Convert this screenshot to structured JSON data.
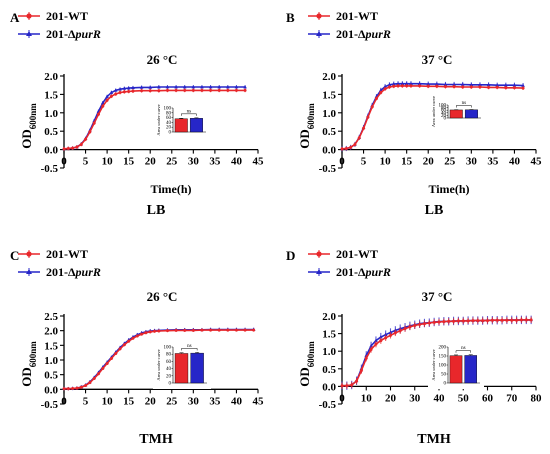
{
  "legend": {
    "wt_label": "201-WT",
    "mut_prefix": "201-Δ",
    "mut_gene": "purR",
    "wt_color": "#e8272b",
    "mut_color": "#2626c8"
  },
  "chart_data": [
    {
      "panel": "A",
      "type": "line",
      "title": "26 °C",
      "medium": "LB",
      "xlabel": "Time(h)",
      "ylabel_main": "OD",
      "ylabel_sub": "600nm",
      "xlim": [
        0,
        45
      ],
      "ylim": [
        -0.5,
        2.0
      ],
      "xticks": [
        0,
        5,
        10,
        15,
        20,
        25,
        30,
        35,
        40,
        45
      ],
      "yticks": [
        -0.5,
        0.0,
        0.5,
        1.0,
        1.5,
        2.0
      ],
      "tick_format": 1,
      "series": [
        {
          "name": "201-WT",
          "x": [
            0,
            1,
            2,
            3,
            4,
            5,
            6,
            7,
            8,
            9,
            10,
            11,
            12,
            13,
            14,
            15,
            16,
            18,
            20,
            22,
            24,
            26,
            28,
            30,
            32,
            34,
            36,
            38,
            40,
            42
          ],
          "y": [
            0.02,
            0.03,
            0.04,
            0.07,
            0.14,
            0.28,
            0.48,
            0.72,
            0.96,
            1.18,
            1.34,
            1.45,
            1.51,
            1.55,
            1.57,
            1.58,
            1.59,
            1.6,
            1.6,
            1.6,
            1.61,
            1.61,
            1.61,
            1.61,
            1.61,
            1.61,
            1.61,
            1.61,
            1.61,
            1.61
          ],
          "err": 0.05
        },
        {
          "name": "201-ΔpurR",
          "x": [
            0,
            1,
            2,
            3,
            4,
            5,
            6,
            7,
            8,
            9,
            10,
            11,
            12,
            13,
            14,
            15,
            16,
            18,
            20,
            22,
            24,
            26,
            28,
            30,
            32,
            34,
            36,
            38,
            40,
            42
          ],
          "y": [
            0.02,
            0.03,
            0.04,
            0.07,
            0.15,
            0.3,
            0.52,
            0.78,
            1.04,
            1.27,
            1.44,
            1.55,
            1.61,
            1.64,
            1.66,
            1.67,
            1.68,
            1.69,
            1.69,
            1.7,
            1.7,
            1.7,
            1.7,
            1.7,
            1.7,
            1.7,
            1.7,
            1.7,
            1.7,
            1.7
          ],
          "err": 0.05
        }
      ],
      "inset": {
        "yticks": [
          0,
          20,
          40,
          60,
          80,
          100
        ],
        "ymax": 100,
        "ylabel": "Area under curve",
        "values": [
          55,
          57
        ],
        "errs": [
          2,
          2
        ],
        "sig": "ns"
      }
    },
    {
      "panel": "B",
      "type": "line",
      "title": "37 °C",
      "medium": "LB",
      "xlabel": "Time(h)",
      "ylabel_main": "OD",
      "ylabel_sub": "600nm",
      "xlim": [
        0,
        45
      ],
      "ylim": [
        -0.5,
        2.0
      ],
      "xticks": [
        0,
        5,
        10,
        15,
        20,
        25,
        30,
        35,
        40,
        45
      ],
      "yticks": [
        -0.5,
        0.0,
        0.5,
        1.0,
        1.5,
        2.0
      ],
      "tick_format": 1,
      "series": [
        {
          "name": "201-WT",
          "x": [
            0,
            1,
            2,
            3,
            4,
            5,
            6,
            7,
            8,
            9,
            10,
            11,
            12,
            13,
            14,
            15,
            16,
            18,
            20,
            22,
            24,
            26,
            28,
            30,
            32,
            34,
            36,
            38,
            40,
            42
          ],
          "y": [
            0.02,
            0.03,
            0.06,
            0.14,
            0.32,
            0.58,
            0.88,
            1.16,
            1.39,
            1.55,
            1.65,
            1.7,
            1.72,
            1.73,
            1.73,
            1.73,
            1.73,
            1.73,
            1.72,
            1.72,
            1.71,
            1.71,
            1.7,
            1.7,
            1.7,
            1.69,
            1.69,
            1.68,
            1.68,
            1.67
          ],
          "err": 0.05
        },
        {
          "name": "201-ΔpurR",
          "x": [
            0,
            1,
            2,
            3,
            4,
            5,
            6,
            7,
            8,
            9,
            10,
            11,
            12,
            13,
            14,
            15,
            16,
            18,
            20,
            22,
            24,
            26,
            28,
            30,
            32,
            34,
            36,
            38,
            40,
            42
          ],
          "y": [
            0.02,
            0.03,
            0.06,
            0.14,
            0.33,
            0.6,
            0.91,
            1.2,
            1.44,
            1.61,
            1.71,
            1.76,
            1.78,
            1.79,
            1.79,
            1.79,
            1.79,
            1.79,
            1.78,
            1.78,
            1.77,
            1.77,
            1.77,
            1.76,
            1.76,
            1.76,
            1.75,
            1.75,
            1.75,
            1.74
          ],
          "err": 0.07
        }
      ],
      "inset": {
        "yticks": [
          0,
          20,
          40,
          60,
          80,
          100
        ],
        "ymax": 100,
        "ylabel": "Area under curve",
        "values": [
          62,
          63
        ],
        "errs": [
          2,
          2
        ],
        "sig": "ns"
      }
    },
    {
      "panel": "C",
      "type": "line",
      "title": "26 °C",
      "medium": "TMH",
      "xlabel": "",
      "ylabel_main": "OD",
      "ylabel_sub": "600nm",
      "xlim": [
        0,
        45
      ],
      "ylim": [
        -0.5,
        2.5
      ],
      "xticks": [
        0,
        5,
        10,
        15,
        20,
        25,
        30,
        35,
        40,
        45
      ],
      "yticks": [
        -0.5,
        0.0,
        0.5,
        1.0,
        1.5,
        2.0,
        2.5
      ],
      "tick_format": 1,
      "series": [
        {
          "name": "201-WT",
          "x": [
            0,
            1,
            2,
            3,
            4,
            5,
            6,
            7,
            8,
            9,
            10,
            11,
            12,
            13,
            14,
            15,
            16,
            17,
            18,
            19,
            20,
            21,
            22,
            24,
            26,
            28,
            30,
            32,
            34,
            36,
            38,
            40,
            42,
            44
          ],
          "y": [
            0.02,
            0.02,
            0.03,
            0.04,
            0.07,
            0.13,
            0.23,
            0.37,
            0.53,
            0.71,
            0.88,
            1.05,
            1.22,
            1.38,
            1.52,
            1.64,
            1.74,
            1.82,
            1.88,
            1.93,
            1.96,
            1.98,
            1.99,
            2.0,
            2.01,
            2.01,
            2.01,
            2.02,
            2.02,
            2.02,
            2.02,
            2.02,
            2.02,
            2.02
          ],
          "err": 0.05
        },
        {
          "name": "201-ΔpurR",
          "x": [
            0,
            1,
            2,
            3,
            4,
            5,
            6,
            7,
            8,
            9,
            10,
            11,
            12,
            13,
            14,
            15,
            16,
            17,
            18,
            19,
            20,
            21,
            22,
            24,
            26,
            28,
            30,
            32,
            34,
            36,
            38,
            40,
            42,
            44
          ],
          "y": [
            0.02,
            0.02,
            0.03,
            0.04,
            0.08,
            0.14,
            0.25,
            0.4,
            0.57,
            0.75,
            0.92,
            1.09,
            1.26,
            1.42,
            1.56,
            1.68,
            1.78,
            1.86,
            1.92,
            1.96,
            1.99,
            2.0,
            2.01,
            2.02,
            2.03,
            2.03,
            2.03,
            2.03,
            2.04,
            2.04,
            2.04,
            2.04,
            2.04,
            2.04
          ],
          "err": 0.06
        }
      ],
      "inset": {
        "yticks": [
          0,
          20,
          40,
          60,
          80,
          100
        ],
        "ymax": 100,
        "ylabel": "Area under curve",
        "values": [
          82,
          83
        ],
        "errs": [
          2,
          2
        ],
        "sig": "ns"
      }
    },
    {
      "panel": "D",
      "type": "line",
      "title": "37 °C",
      "medium": "TMH",
      "xlabel": "",
      "ylabel_main": "OD",
      "ylabel_sub": "600nm",
      "xlim": [
        0,
        80
      ],
      "ylim": [
        -0.5,
        2.0
      ],
      "xticks": [
        0,
        10,
        20,
        30,
        40,
        50,
        60,
        70,
        80
      ],
      "yticks": [
        -0.5,
        0.0,
        0.5,
        1.0,
        1.5,
        2.0
      ],
      "tick_format": 1,
      "series": [
        {
          "name": "201-WT",
          "x": [
            0,
            2,
            4,
            6,
            8,
            10,
            12,
            14,
            16,
            18,
            20,
            22,
            24,
            26,
            28,
            30,
            32,
            34,
            36,
            38,
            40,
            42,
            44,
            46,
            48,
            50,
            52,
            54,
            56,
            58,
            60,
            62,
            64,
            66,
            68,
            70,
            72,
            74,
            76,
            78
          ],
          "y": [
            0.02,
            0.02,
            0.04,
            0.15,
            0.45,
            0.8,
            1.05,
            1.2,
            1.3,
            1.38,
            1.45,
            1.52,
            1.58,
            1.64,
            1.69,
            1.73,
            1.76,
            1.78,
            1.8,
            1.82,
            1.83,
            1.84,
            1.85,
            1.85,
            1.86,
            1.86,
            1.86,
            1.87,
            1.87,
            1.87,
            1.87,
            1.88,
            1.88,
            1.88,
            1.88,
            1.88,
            1.88,
            1.89,
            1.89,
            1.89
          ],
          "err": 0.09
        },
        {
          "name": "201-ΔpurR",
          "x": [
            0,
            2,
            4,
            6,
            8,
            10,
            12,
            14,
            16,
            18,
            20,
            22,
            24,
            26,
            28,
            30,
            32,
            34,
            36,
            38,
            40,
            42,
            44,
            46,
            48,
            50,
            52,
            54,
            56,
            58,
            60,
            62,
            64,
            66,
            68,
            70,
            72,
            74,
            76,
            78
          ],
          "y": [
            0.02,
            0.02,
            0.04,
            0.16,
            0.5,
            0.88,
            1.15,
            1.3,
            1.4,
            1.47,
            1.53,
            1.59,
            1.64,
            1.68,
            1.72,
            1.75,
            1.78,
            1.8,
            1.81,
            1.83,
            1.84,
            1.85,
            1.85,
            1.86,
            1.86,
            1.86,
            1.87,
            1.87,
            1.87,
            1.87,
            1.88,
            1.88,
            1.88,
            1.88,
            1.89,
            1.89,
            1.89,
            1.89,
            1.89,
            1.89
          ],
          "err": 0.12
        }
      ],
      "inset": {
        "yticks": [
          0,
          50,
          100,
          150,
          200
        ],
        "ymax": 200,
        "ylabel": "Area under curve",
        "values": [
          152,
          153
        ],
        "errs": [
          4,
          4
        ],
        "sig": "ns"
      }
    }
  ]
}
